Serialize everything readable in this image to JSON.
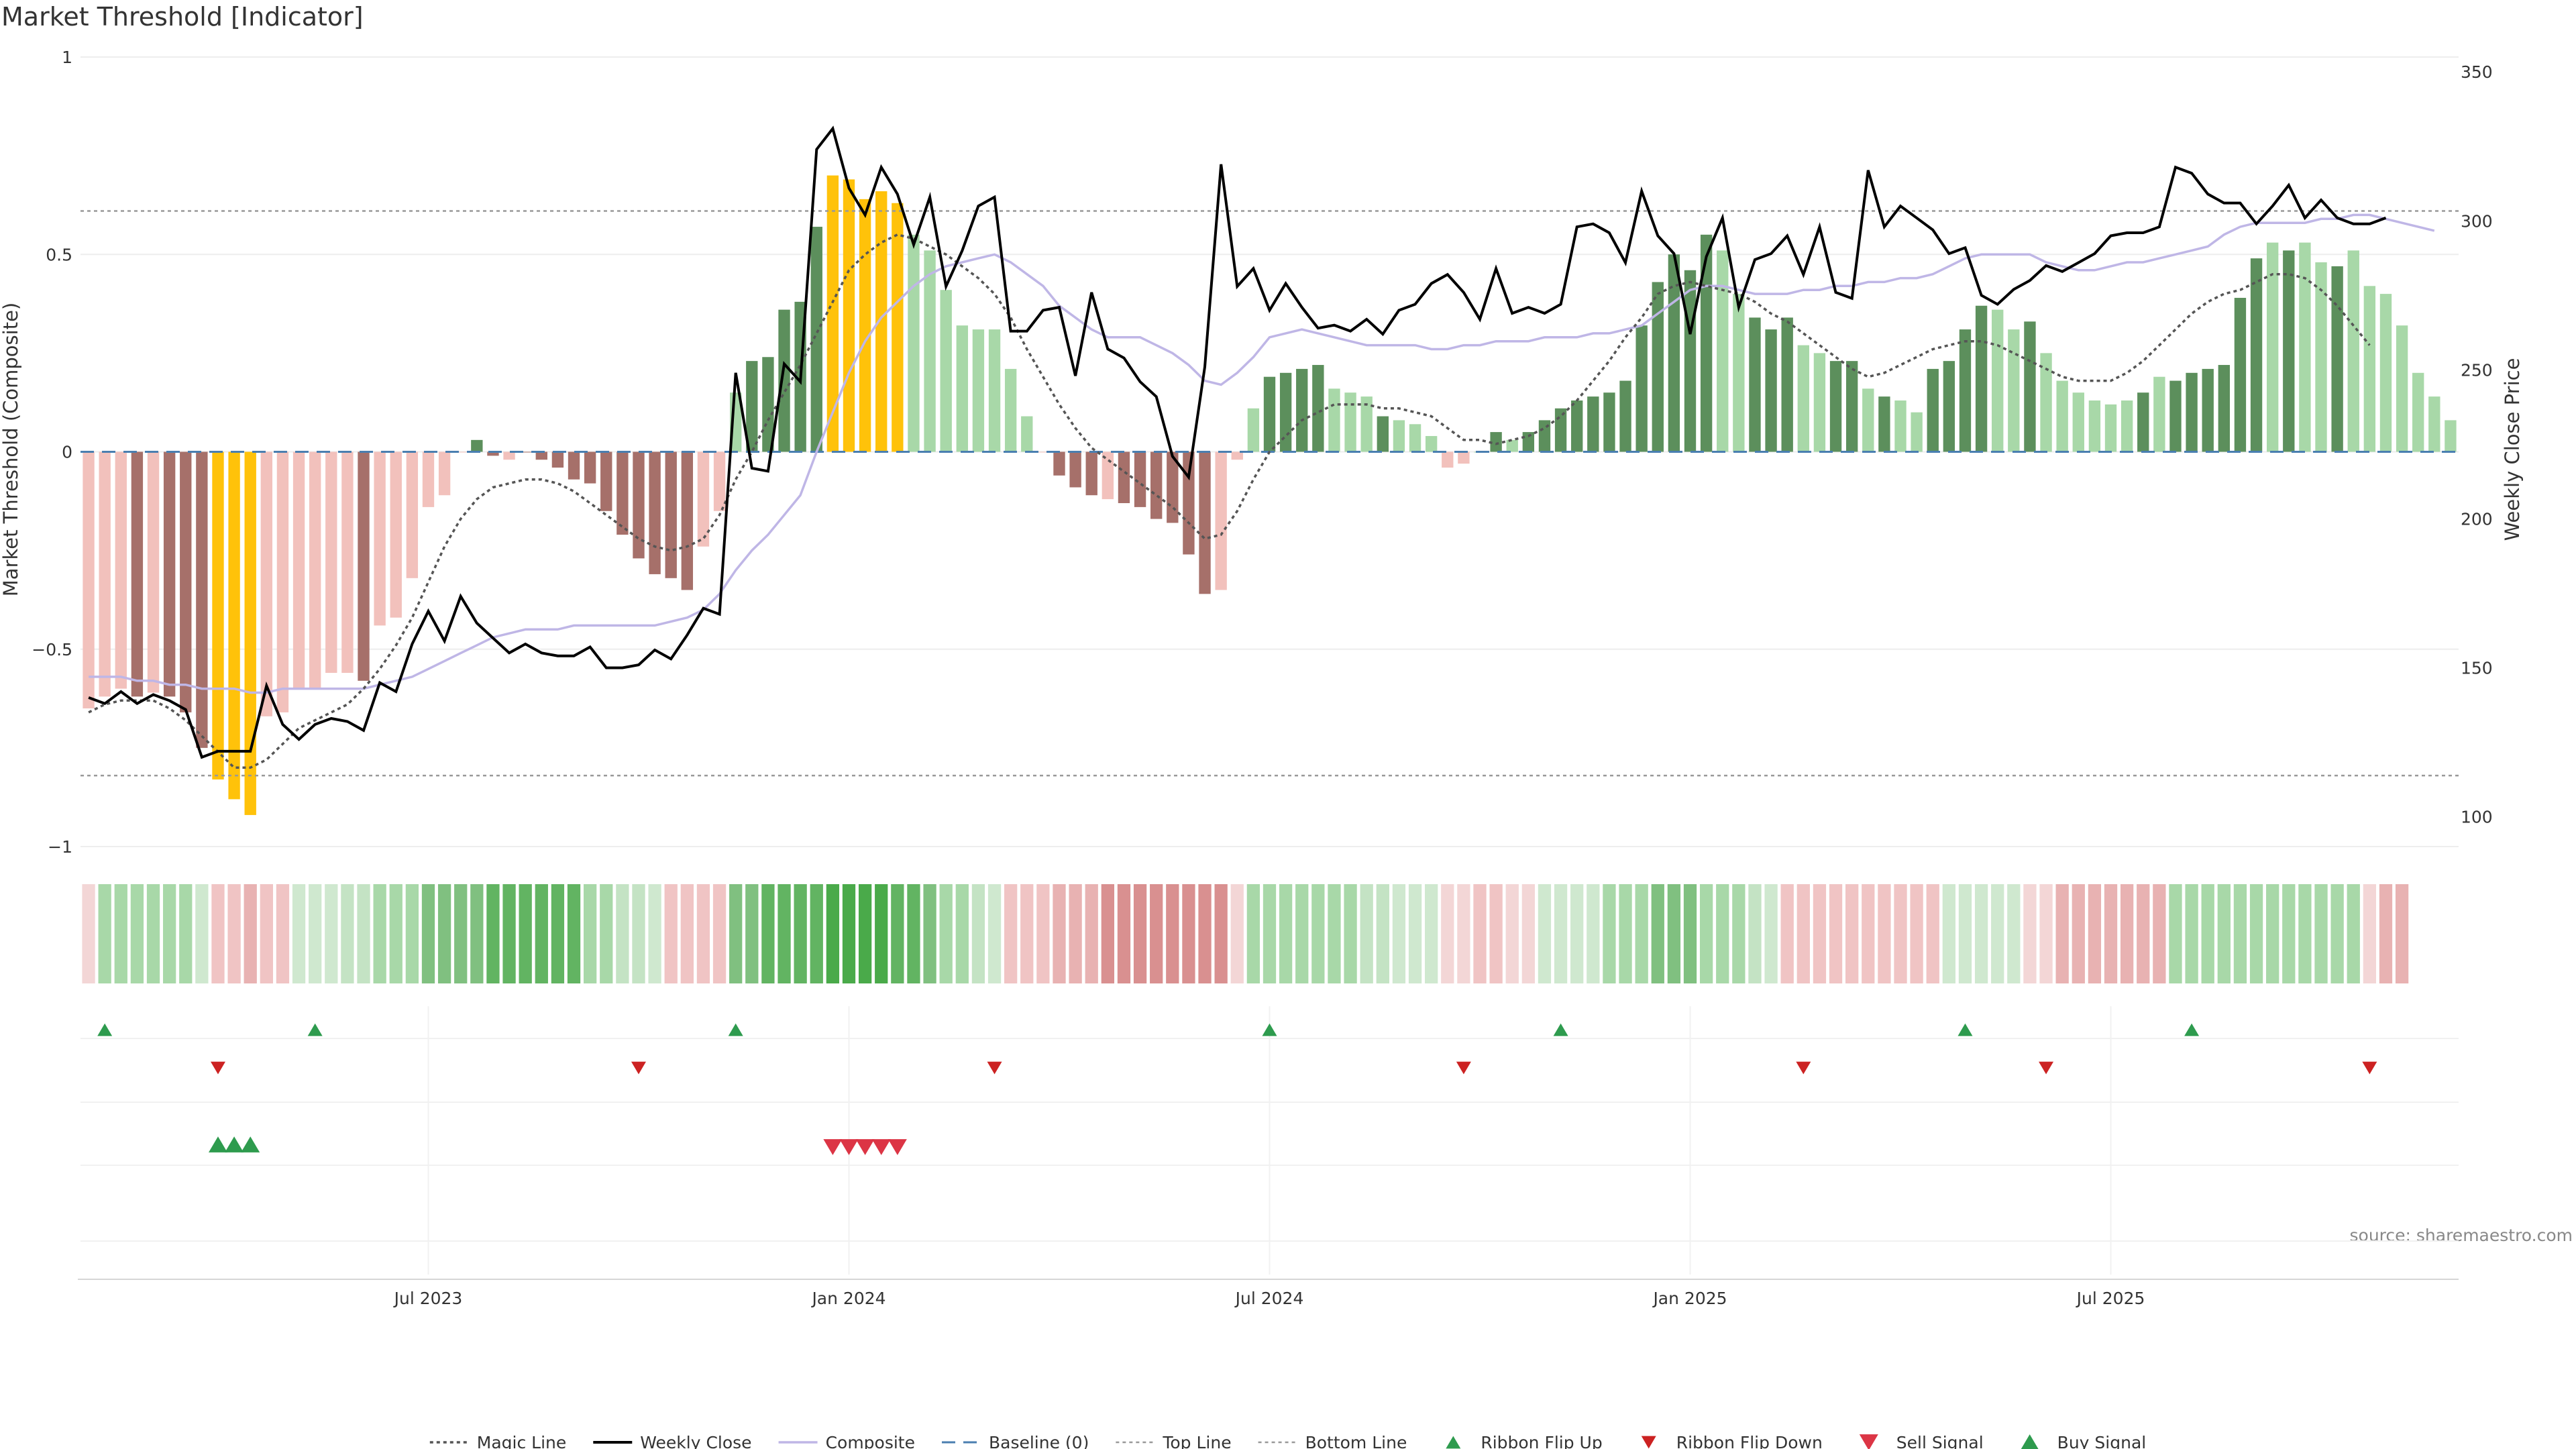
{
  "chart_data": {
    "type": "bar",
    "title": "Market Threshold [Indicator]",
    "ylabel": "Market Threshold (Composite)",
    "y2label": "Weekly Close Price",
    "source": "source: sharemaestro.com",
    "ylim": [
      -1,
      1
    ],
    "y2lim": [
      90,
      355
    ],
    "yticks": [
      {
        "v": 1,
        "label": "1"
      },
      {
        "v": 0.5,
        "label": "0.5"
      },
      {
        "v": 0,
        "label": "0"
      },
      {
        "v": -0.5,
        "label": "−0.5"
      },
      {
        "v": -1,
        "label": "−1"
      }
    ],
    "y2ticks": [
      {
        "v": 350,
        "label": "350"
      },
      {
        "v": 300,
        "label": "300"
      },
      {
        "v": 250,
        "label": "250"
      },
      {
        "v": 200,
        "label": "200"
      },
      {
        "v": 150,
        "label": "150"
      },
      {
        "v": 100,
        "label": "100"
      }
    ],
    "xticks": [
      {
        "i": 21,
        "label": "Jul 2023"
      },
      {
        "i": 47,
        "label": "Jan 2024"
      },
      {
        "i": 73,
        "label": "Jul 2024"
      },
      {
        "i": 99,
        "label": "Jan 2025"
      },
      {
        "i": 125,
        "label": "Jul 2025"
      }
    ],
    "top_line": 0.61,
    "bottom_line": -0.82,
    "composite": [
      -0.65,
      -0.62,
      -0.6,
      -0.62,
      -0.61,
      -0.62,
      -0.66,
      -0.75,
      -0.83,
      -0.88,
      -0.92,
      -0.67,
      -0.66,
      -0.6,
      -0.6,
      -0.56,
      -0.56,
      -0.58,
      -0.44,
      -0.42,
      -0.32,
      -0.14,
      -0.11,
      0.0,
      0.03,
      -0.01,
      -0.02,
      0.0,
      -0.02,
      -0.04,
      -0.07,
      -0.08,
      -0.15,
      -0.21,
      -0.27,
      -0.31,
      -0.32,
      -0.35,
      -0.24,
      -0.15,
      0.15,
      0.23,
      0.24,
      0.36,
      0.38,
      0.57,
      0.7,
      0.69,
      0.64,
      0.66,
      0.63,
      0.55,
      0.51,
      0.41,
      0.32,
      0.31,
      0.31,
      0.21,
      0.09,
      0.0,
      -0.06,
      -0.09,
      -0.11,
      -0.12,
      -0.13,
      -0.14,
      -0.17,
      -0.18,
      -0.26,
      -0.36,
      -0.35,
      -0.02,
      0.11,
      0.19,
      0.2,
      0.21,
      0.22,
      0.16,
      0.15,
      0.14,
      0.09,
      0.08,
      0.07,
      0.04,
      -0.04,
      -0.03,
      0.0,
      0.05,
      0.03,
      0.05,
      0.08,
      0.11,
      0.13,
      0.14,
      0.15,
      0.18,
      0.32,
      0.43,
      0.5,
      0.46,
      0.55,
      0.51,
      0.4,
      0.34,
      0.31,
      0.34,
      0.27,
      0.25,
      0.23,
      0.23,
      0.16,
      0.14,
      0.13,
      0.1,
      0.21,
      0.23,
      0.31,
      0.37,
      0.36,
      0.31,
      0.33,
      0.25,
      0.18,
      0.15,
      0.13,
      0.12,
      0.13,
      0.15,
      0.19,
      0.18,
      0.2,
      0.21,
      0.22,
      0.39,
      0.49,
      0.53,
      0.51,
      0.53,
      0.48,
      0.47,
      0.51,
      0.42,
      0.4,
      0.32,
      0.2,
      0.14,
      0.08
    ],
    "bar_colors": [
      "#f2c1bc",
      "#f2c1bc",
      "#f2c1bc",
      "#a6706a",
      "#f2c1bc",
      "#a6706a",
      "#a6706a",
      "#a6706a",
      "#ffc20a",
      "#ffc20a",
      "#ffc20a",
      "#f2c1bc",
      "#f2c1bc",
      "#f2c1bc",
      "#f2c1bc",
      "#f2c1bc",
      "#f2c1bc",
      "#a6706a",
      "#f2c1bc",
      "#f2c1bc",
      "#f2c1bc",
      "#f2c1bc",
      "#f2c1bc",
      "#f2c1bc",
      "#5c8f5c",
      "#a6706a",
      "#f2c1bc",
      "#a6706a",
      "#a6706a",
      "#a6706a",
      "#a6706a",
      "#a6706a",
      "#a6706a",
      "#a6706a",
      "#a6706a",
      "#a6706a",
      "#a6706a",
      "#a6706a",
      "#f2c1bc",
      "#f2c1bc",
      "#a8d8a8",
      "#5c8f5c",
      "#5c8f5c",
      "#5c8f5c",
      "#5c8f5c",
      "#5c8f5c",
      "#ffc20a",
      "#ffc20a",
      "#ffc20a",
      "#ffc20a",
      "#ffc20a",
      "#a8d8a8",
      "#a8d8a8",
      "#a8d8a8",
      "#a8d8a8",
      "#a8d8a8",
      "#a8d8a8",
      "#a8d8a8",
      "#a8d8a8",
      "#f2c1bc",
      "#a6706a",
      "#a6706a",
      "#a6706a",
      "#f2c1bc",
      "#a6706a",
      "#a6706a",
      "#a6706a",
      "#a6706a",
      "#a6706a",
      "#a6706a",
      "#f2c1bc",
      "#f2c1bc",
      "#a8d8a8",
      "#5c8f5c",
      "#5c8f5c",
      "#5c8f5c",
      "#5c8f5c",
      "#a8d8a8",
      "#a8d8a8",
      "#a8d8a8",
      "#5c8f5c",
      "#a8d8a8",
      "#a8d8a8",
      "#a8d8a8",
      "#f2c1bc",
      "#f2c1bc",
      "#a8d8a8",
      "#5c8f5c",
      "#a8d8a8",
      "#5c8f5c",
      "#5c8f5c",
      "#5c8f5c",
      "#5c8f5c",
      "#5c8f5c",
      "#5c8f5c",
      "#5c8f5c",
      "#5c8f5c",
      "#5c8f5c",
      "#5c8f5c",
      "#5c8f5c",
      "#5c8f5c",
      "#a8d8a8",
      "#a8d8a8",
      "#5c8f5c",
      "#5c8f5c",
      "#5c8f5c",
      "#a8d8a8",
      "#a8d8a8",
      "#5c8f5c",
      "#5c8f5c",
      "#a8d8a8",
      "#5c8f5c",
      "#a8d8a8",
      "#a8d8a8",
      "#5c8f5c",
      "#5c8f5c",
      "#5c8f5c",
      "#5c8f5c",
      "#a8d8a8",
      "#a8d8a8",
      "#5c8f5c",
      "#a8d8a8",
      "#a8d8a8",
      "#a8d8a8",
      "#a8d8a8",
      "#a8d8a8",
      "#a8d8a8",
      "#5c8f5c",
      "#a8d8a8",
      "#5c8f5c",
      "#5c8f5c",
      "#5c8f5c",
      "#5c8f5c",
      "#5c8f5c",
      "#5c8f5c",
      "#a8d8a8",
      "#5c8f5c",
      "#a8d8a8",
      "#a8d8a8",
      "#5c8f5c",
      "#a8d8a8",
      "#a8d8a8",
      "#a8d8a8",
      "#a8d8a8",
      "#a8d8a8",
      "#a8d8a8",
      "#a8d8a8"
    ],
    "weekly_close": [
      140,
      138,
      142,
      138,
      141,
      139,
      136,
      120,
      122,
      122,
      122,
      144,
      131,
      126,
      131,
      133,
      132,
      129,
      145,
      142,
      158,
      169,
      159,
      174,
      165,
      160,
      155,
      158,
      155,
      154,
      154,
      157,
      150,
      150,
      151,
      156,
      153,
      161,
      170,
      168,
      249,
      217,
      216,
      252,
      246,
      324,
      331,
      311,
      302,
      318,
      309,
      292,
      308,
      278,
      290,
      305,
      308,
      263,
      263,
      270,
      271,
      248,
      276,
      257,
      254,
      246,
      241,
      221,
      214,
      251,
      319,
      278,
      284,
      270,
      279,
      271,
      264,
      265,
      263,
      267,
      262,
      270,
      272,
      279,
      282,
      276,
      267,
      284,
      269,
      271,
      269,
      272,
      298,
      299,
      296,
      286,
      310,
      295,
      289,
      262,
      288,
      301,
      271,
      287,
      289,
      295,
      282,
      298,
      276,
      274,
      317,
      298,
      305,
      301,
      297,
      289,
      291,
      275,
      272,
      277,
      280,
      285,
      283,
      286,
      289,
      295,
      296,
      296,
      298,
      318,
      316,
      309,
      306,
      306,
      299,
      305,
      312,
      301,
      307,
      301,
      299,
      299,
      301
    ],
    "magic_line": [
      -0.66,
      -0.64,
      -0.63,
      -0.63,
      -0.63,
      -0.65,
      -0.68,
      -0.72,
      -0.76,
      -0.8,
      -0.8,
      -0.78,
      -0.74,
      -0.7,
      -0.68,
      -0.66,
      -0.64,
      -0.6,
      -0.55,
      -0.49,
      -0.42,
      -0.33,
      -0.24,
      -0.17,
      -0.12,
      -0.09,
      -0.08,
      -0.07,
      -0.07,
      -0.08,
      -0.1,
      -0.13,
      -0.16,
      -0.19,
      -0.22,
      -0.24,
      -0.25,
      -0.24,
      -0.22,
      -0.16,
      -0.07,
      0.0,
      0.08,
      0.15,
      0.22,
      0.3,
      0.38,
      0.46,
      0.5,
      0.53,
      0.55,
      0.54,
      0.52,
      0.5,
      0.47,
      0.44,
      0.4,
      0.34,
      0.26,
      0.19,
      0.12,
      0.06,
      0.01,
      -0.02,
      -0.05,
      -0.08,
      -0.11,
      -0.14,
      -0.18,
      -0.22,
      -0.21,
      -0.15,
      -0.07,
      0.0,
      0.04,
      0.08,
      0.1,
      0.12,
      0.12,
      0.12,
      0.11,
      0.11,
      0.1,
      0.09,
      0.06,
      0.03,
      0.03,
      0.02,
      0.03,
      0.04,
      0.06,
      0.09,
      0.13,
      0.18,
      0.23,
      0.29,
      0.34,
      0.4,
      0.42,
      0.43,
      0.42,
      0.41,
      0.4,
      0.38,
      0.35,
      0.33,
      0.3,
      0.27,
      0.24,
      0.21,
      0.19,
      0.2,
      0.22,
      0.24,
      0.26,
      0.27,
      0.28,
      0.28,
      0.27,
      0.25,
      0.23,
      0.21,
      0.19,
      0.18,
      0.18,
      0.18,
      0.2,
      0.23,
      0.27,
      0.31,
      0.35,
      0.38,
      0.4,
      0.41,
      0.43,
      0.45,
      0.45,
      0.44,
      0.41,
      0.37,
      0.32,
      0.27
    ],
    "composite_line": [
      -0.57,
      -0.57,
      -0.57,
      -0.58,
      -0.58,
      -0.59,
      -0.59,
      -0.6,
      -0.6,
      -0.6,
      -0.61,
      -0.61,
      -0.6,
      -0.6,
      -0.6,
      -0.6,
      -0.6,
      -0.6,
      -0.59,
      -0.58,
      -0.57,
      -0.55,
      -0.53,
      -0.51,
      -0.49,
      -0.47,
      -0.46,
      -0.45,
      -0.45,
      -0.45,
      -0.44,
      -0.44,
      -0.44,
      -0.44,
      -0.44,
      -0.44,
      -0.43,
      -0.42,
      -0.4,
      -0.36,
      -0.3,
      -0.25,
      -0.21,
      -0.16,
      -0.11,
      0.0,
      0.1,
      0.2,
      0.28,
      0.34,
      0.38,
      0.42,
      0.45,
      0.47,
      0.48,
      0.49,
      0.5,
      0.48,
      0.45,
      0.42,
      0.37,
      0.34,
      0.31,
      0.29,
      0.29,
      0.29,
      0.27,
      0.25,
      0.22,
      0.18,
      0.17,
      0.2,
      0.24,
      0.29,
      0.3,
      0.31,
      0.3,
      0.29,
      0.28,
      0.27,
      0.27,
      0.27,
      0.27,
      0.26,
      0.26,
      0.27,
      0.27,
      0.28,
      0.28,
      0.28,
      0.29,
      0.29,
      0.29,
      0.3,
      0.3,
      0.31,
      0.32,
      0.35,
      0.38,
      0.41,
      0.42,
      0.42,
      0.41,
      0.4,
      0.4,
      0.4,
      0.41,
      0.41,
      0.42,
      0.42,
      0.43,
      0.43,
      0.44,
      0.44,
      0.45,
      0.47,
      0.49,
      0.5,
      0.5,
      0.5,
      0.5,
      0.48,
      0.47,
      0.46,
      0.46,
      0.47,
      0.48,
      0.48,
      0.49,
      0.5,
      0.51,
      0.52,
      0.55,
      0.57,
      0.58,
      0.58,
      0.58,
      0.58,
      0.59,
      0.59,
      0.6,
      0.6,
      0.59,
      0.58,
      0.57,
      0.56
    ],
    "ribbon_colors": [
      "#f3d6d6",
      "#a8d8a8",
      "#a8d8a8",
      "#a8d8a8",
      "#a8d8a8",
      "#a8d8a8",
      "#a8d8a8",
      "#cfe8cf",
      "#f0c4c4",
      "#f0c4c4",
      "#e8b2b2",
      "#f0c4c4",
      "#f0c4c4",
      "#cfe8cf",
      "#cfe8cf",
      "#cfe8cf",
      "#c4e3c4",
      "#c4e3c4",
      "#a8d8a8",
      "#a8d8a8",
      "#a8d8a8",
      "#80c080",
      "#80c080",
      "#80c080",
      "#80c080",
      "#62b462",
      "#62b462",
      "#62b462",
      "#62b462",
      "#62b462",
      "#62b462",
      "#a8d8a8",
      "#a8d8a8",
      "#c4e3c4",
      "#c4e3c4",
      "#cfe8cf",
      "#f0c4c4",
      "#f0c4c4",
      "#f0c4c4",
      "#f0c4c4",
      "#80c080",
      "#80c080",
      "#62b462",
      "#62b462",
      "#62b462",
      "#62b462",
      "#4aaa4a",
      "#4aaa4a",
      "#4aaa4a",
      "#4aaa4a",
      "#62b462",
      "#62b462",
      "#80c080",
      "#a8d8a8",
      "#a8d8a8",
      "#c4e3c4",
      "#cfe8cf",
      "#f0c4c4",
      "#f0c4c4",
      "#f0c4c4",
      "#e8b2b2",
      "#e8b2b2",
      "#e8b2b2",
      "#d99090",
      "#d99090",
      "#d99090",
      "#d99090",
      "#d99090",
      "#d99090",
      "#d99090",
      "#d99090",
      "#f3d6d6",
      "#a8d8a8",
      "#a8d8a8",
      "#a8d8a8",
      "#a8d8a8",
      "#a8d8a8",
      "#a8d8a8",
      "#a8d8a8",
      "#c4e3c4",
      "#c4e3c4",
      "#cfe8cf",
      "#cfe8cf",
      "#cfe8cf",
      "#f3d6d6",
      "#f3d6d6",
      "#f0c4c4",
      "#f0c4c4",
      "#f3d6d6",
      "#f3d6d6",
      "#cfe8cf",
      "#cfe8cf",
      "#cfe8cf",
      "#cfe8cf",
      "#a8d8a8",
      "#a8d8a8",
      "#a8d8a8",
      "#80c080",
      "#80c080",
      "#80c080",
      "#a8d8a8",
      "#a8d8a8",
      "#a8d8a8",
      "#c4e3c4",
      "#cfe8cf",
      "#f0c4c4",
      "#f0c4c4",
      "#f0c4c4",
      "#f0c4c4",
      "#f0c4c4",
      "#f0c4c4",
      "#f0c4c4",
      "#f0c4c4",
      "#f0c4c4",
      "#f0c4c4",
      "#cfe8cf",
      "#cfe8cf",
      "#cfe8cf",
      "#cfe8cf",
      "#cfe8cf",
      "#f3d6d6",
      "#f3d6d6",
      "#e8b2b2",
      "#e8b2b2",
      "#e8b2b2",
      "#e8b2b2",
      "#e8b2b2",
      "#e8b2b2",
      "#e8b2b2",
      "#a8d8a8",
      "#a8d8a8",
      "#a8d8a8",
      "#a8d8a8",
      "#a8d8a8",
      "#a8d8a8",
      "#a8d8a8",
      "#a8d8a8",
      "#a8d8a8",
      "#a8d8a8",
      "#a8d8a8",
      "#a8d8a8",
      "#f3d6d6",
      "#e8b2b2",
      "#e8b2b2"
    ],
    "ribbon_flip_up": [
      1,
      14,
      40,
      73,
      91,
      116,
      130
    ],
    "ribbon_flip_down": [
      8,
      34,
      56,
      85,
      106,
      121,
      141
    ],
    "buy_signals": [
      8,
      9,
      10
    ],
    "sell_signals": [
      46,
      47,
      48,
      49,
      50
    ],
    "legend": [
      "Magic Line",
      "Weekly Close",
      "Composite",
      "Baseline (0)",
      "Top Line",
      "Bottom Line",
      "Ribbon Flip Up",
      "Ribbon Flip Down",
      "Sell Signal",
      "Buy Signal"
    ],
    "colors": {
      "magic": "#555555",
      "close": "#000000",
      "composite_line": "#bfb6e6",
      "baseline": "#4a7fb0",
      "thresholds": "#999999",
      "flip_up": "#2e9b4e",
      "flip_down": "#cc2222",
      "sell": "#dc3545",
      "buy": "#2e9b4e"
    }
  }
}
